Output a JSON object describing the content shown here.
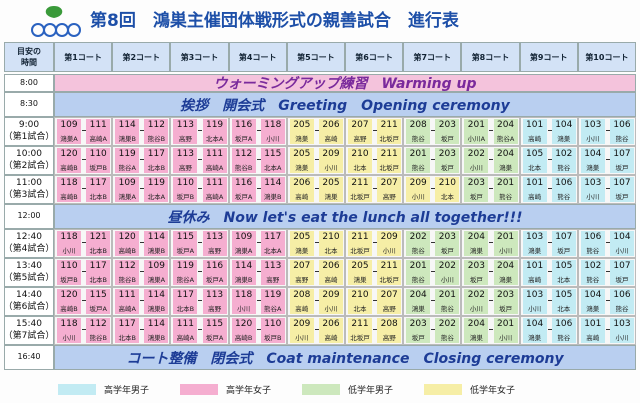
{
  "header": {
    "title": "第8回　鴻巣主催団体戦形式の親善試合　進行表"
  },
  "table": {
    "corner": [
      "目安の",
      "時間"
    ],
    "courts": [
      "第1コート",
      "第2コート",
      "第3コート",
      "第4コート",
      "第5コート",
      "第6コート",
      "第7コート",
      "第8コート",
      "第9コート",
      "第10コート"
    ],
    "rows": [
      {
        "time": "8:00",
        "banner": "ウォーミングアップ練習　Warming up",
        "color": "#f4c3dc",
        "text_color": "#7a2a9c"
      },
      {
        "time": "8:30",
        "banner": "挨拶　開会式　Greeting　Opening ceremony",
        "color": "#b9cff0",
        "text_color": "#1d3c96"
      },
      {
        "time": "9:00",
        "round": "（第1試合）",
        "matches": [
          [
            109,
            "鴻巣A",
            1
          ],
          [
            111,
            "高崎A",
            1
          ],
          [
            114,
            "鴻巣B",
            1
          ],
          [
            112,
            "熊谷B",
            1
          ],
          [
            113,
            "高野",
            1
          ],
          [
            119,
            "北本A",
            1
          ],
          [
            116,
            "坂戸A",
            1
          ],
          [
            118,
            "小川",
            1
          ],
          [
            205,
            "鴻巣",
            3
          ],
          [
            206,
            "高崎",
            3
          ],
          [
            207,
            "高野",
            3
          ],
          [
            211,
            "北坂戸",
            3
          ],
          [
            208,
            "熊谷",
            2
          ],
          [
            203,
            "坂戸",
            2
          ],
          [
            201,
            "小川A",
            2
          ],
          [
            204,
            "熊谷A",
            2
          ],
          [
            101,
            "高崎",
            0
          ],
          [
            104,
            "鴻巣",
            0
          ],
          [
            103,
            "小川",
            0
          ],
          [
            106,
            "熊谷",
            0
          ]
        ]
      },
      {
        "time": "10:00",
        "round": "（第2試合）",
        "matches": [
          [
            120,
            "高崎B",
            1
          ],
          [
            110,
            "坂戸B",
            1
          ],
          [
            119,
            "熊谷A",
            1
          ],
          [
            117,
            "北本B",
            1
          ],
          [
            113,
            "高野",
            1
          ],
          [
            111,
            "高崎A",
            1
          ],
          [
            112,
            "熊谷B",
            1
          ],
          [
            115,
            "北本A",
            1
          ],
          [
            205,
            "鴻巣",
            3
          ],
          [
            209,
            "小川",
            3
          ],
          [
            210,
            "北本",
            3
          ],
          [
            211,
            "北坂戸",
            3
          ],
          [
            201,
            "熊谷",
            2
          ],
          [
            203,
            "坂戸",
            2
          ],
          [
            202,
            "小川",
            2
          ],
          [
            204,
            "鴻巣",
            2
          ],
          [
            105,
            "北本",
            0
          ],
          [
            102,
            "熊谷",
            0
          ],
          [
            104,
            "鴻巣",
            0
          ],
          [
            107,
            "坂戸",
            0
          ]
        ]
      },
      {
        "time": "11:00",
        "round": "（第3試合）",
        "matches": [
          [
            118,
            "高崎B",
            1
          ],
          [
            117,
            "北本B",
            1
          ],
          [
            109,
            "鴻巣A",
            1
          ],
          [
            119,
            "北本A",
            1
          ],
          [
            110,
            "坂戸B",
            1
          ],
          [
            111,
            "高崎A",
            1
          ],
          [
            116,
            "坂戸A",
            1
          ],
          [
            114,
            "鴻巣B",
            1
          ],
          [
            206,
            "高崎",
            3
          ],
          [
            205,
            "鴻巣",
            3
          ],
          [
            211,
            "北坂戸",
            3
          ],
          [
            207,
            "高野",
            3
          ],
          [
            209,
            "小川",
            3
          ],
          [
            210,
            "北本",
            3
          ],
          [
            203,
            "坂戸",
            2
          ],
          [
            201,
            "熊谷",
            2
          ],
          [
            101,
            "高崎",
            0
          ],
          [
            106,
            "熊谷",
            0
          ],
          [
            103,
            "小川",
            0
          ],
          [
            107,
            "坂戸",
            0
          ]
        ]
      },
      {
        "time": "12:00",
        "banner": "昼休み　Now let's eat the lunch all together!!!",
        "color": "#b9cff0",
        "text_color": "#1d3c96"
      },
      {
        "time": "12:40",
        "round": "（第4試合）",
        "matches": [
          [
            118,
            "小川",
            1
          ],
          [
            121,
            "北本B",
            1
          ],
          [
            120,
            "高崎B",
            1
          ],
          [
            114,
            "鴻巣B",
            1
          ],
          [
            115,
            "坂戸A",
            1
          ],
          [
            113,
            "高野",
            1
          ],
          [
            109,
            "鴻巣A",
            1
          ],
          [
            117,
            "北本A",
            1
          ],
          [
            205,
            "鴻巣",
            3
          ],
          [
            210,
            "北本",
            3
          ],
          [
            211,
            "北坂戸",
            3
          ],
          [
            209,
            "小川",
            3
          ],
          [
            202,
            "熊谷",
            2
          ],
          [
            203,
            "坂戸",
            2
          ],
          [
            204,
            "鴻巣",
            2
          ],
          [
            201,
            "小川",
            2
          ],
          [
            103,
            "鴻巣",
            0
          ],
          [
            107,
            "坂戸",
            0
          ],
          [
            106,
            "熊谷",
            0
          ],
          [
            104,
            "小川",
            0
          ]
        ]
      },
      {
        "time": "13:40",
        "round": "（第5試合）",
        "matches": [
          [
            110,
            "坂戸B",
            1
          ],
          [
            117,
            "北本B",
            1
          ],
          [
            112,
            "熊谷B",
            1
          ],
          [
            109,
            "鴻巣A",
            1
          ],
          [
            119,
            "熊谷A",
            1
          ],
          [
            116,
            "坂戸A",
            1
          ],
          [
            114,
            "鴻巣B",
            1
          ],
          [
            113,
            "高野",
            1
          ],
          [
            207,
            "高野",
            3
          ],
          [
            206,
            "高崎",
            3
          ],
          [
            205,
            "鴻巣",
            3
          ],
          [
            211,
            "北坂戸",
            3
          ],
          [
            201,
            "熊谷",
            2
          ],
          [
            202,
            "小川",
            2
          ],
          [
            203,
            "坂戸",
            2
          ],
          [
            204,
            "鴻巣",
            2
          ],
          [
            101,
            "高崎",
            0
          ],
          [
            105,
            "北本",
            0
          ],
          [
            102,
            "熊谷",
            0
          ],
          [
            107,
            "坂戸",
            0
          ]
        ]
      },
      {
        "time": "14:40",
        "round": "（第6試合）",
        "matches": [
          [
            120,
            "高崎B",
            1
          ],
          [
            115,
            "坂戸A",
            1
          ],
          [
            111,
            "高崎A",
            1
          ],
          [
            114,
            "鴻巣B",
            1
          ],
          [
            117,
            "北本B",
            1
          ],
          [
            113,
            "高野",
            1
          ],
          [
            118,
            "小川",
            1
          ],
          [
            119,
            "熊谷A",
            1
          ],
          [
            208,
            "高崎",
            3
          ],
          [
            209,
            "小川",
            3
          ],
          [
            210,
            "北本",
            3
          ],
          [
            207,
            "高野",
            3
          ],
          [
            204,
            "鴻巣",
            2
          ],
          [
            201,
            "熊谷",
            2
          ],
          [
            202,
            "小川",
            2
          ],
          [
            203,
            "坂戸",
            2
          ],
          [
            103,
            "小川",
            0
          ],
          [
            105,
            "北本",
            0
          ],
          [
            104,
            "鴻巣",
            0
          ],
          [
            106,
            "熊谷",
            0
          ]
        ]
      },
      {
        "time": "15:40",
        "round": "（第7試合）",
        "matches": [
          [
            118,
            "小川",
            1
          ],
          [
            112,
            "熊谷B",
            1
          ],
          [
            117,
            "北本B",
            1
          ],
          [
            114,
            "鴻巣B",
            1
          ],
          [
            111,
            "高崎A",
            1
          ],
          [
            115,
            "坂戸A",
            1
          ],
          [
            120,
            "高崎B",
            1
          ],
          [
            110,
            "坂戸B",
            1
          ],
          [
            209,
            "小川",
            3
          ],
          [
            206,
            "高崎",
            3
          ],
          [
            211,
            "北坂戸",
            3
          ],
          [
            208,
            "高野",
            3
          ],
          [
            203,
            "坂戸",
            2
          ],
          [
            202,
            "熊谷",
            2
          ],
          [
            204,
            "鴻巣",
            2
          ],
          [
            201,
            "小川",
            2
          ],
          [
            104,
            "鴻巣",
            0
          ],
          [
            106,
            "熊谷",
            0
          ],
          [
            101,
            "高崎",
            0
          ],
          [
            103,
            "小川",
            0
          ]
        ]
      },
      {
        "time": "16:40",
        "banner": "コート整備　閉会式　Coat maintenance　Closing ceremony",
        "color": "#b9cff0",
        "text_color": "#1d3c96"
      }
    ]
  },
  "legend": [
    {
      "label": "高学年男子",
      "color": "#c2ebf3"
    },
    {
      "label": "高学年女子",
      "color": "#f5aed0"
    },
    {
      "label": "低学年男子",
      "color": "#cde8bd"
    },
    {
      "label": "低学年女子",
      "color": "#f6eea6"
    }
  ]
}
